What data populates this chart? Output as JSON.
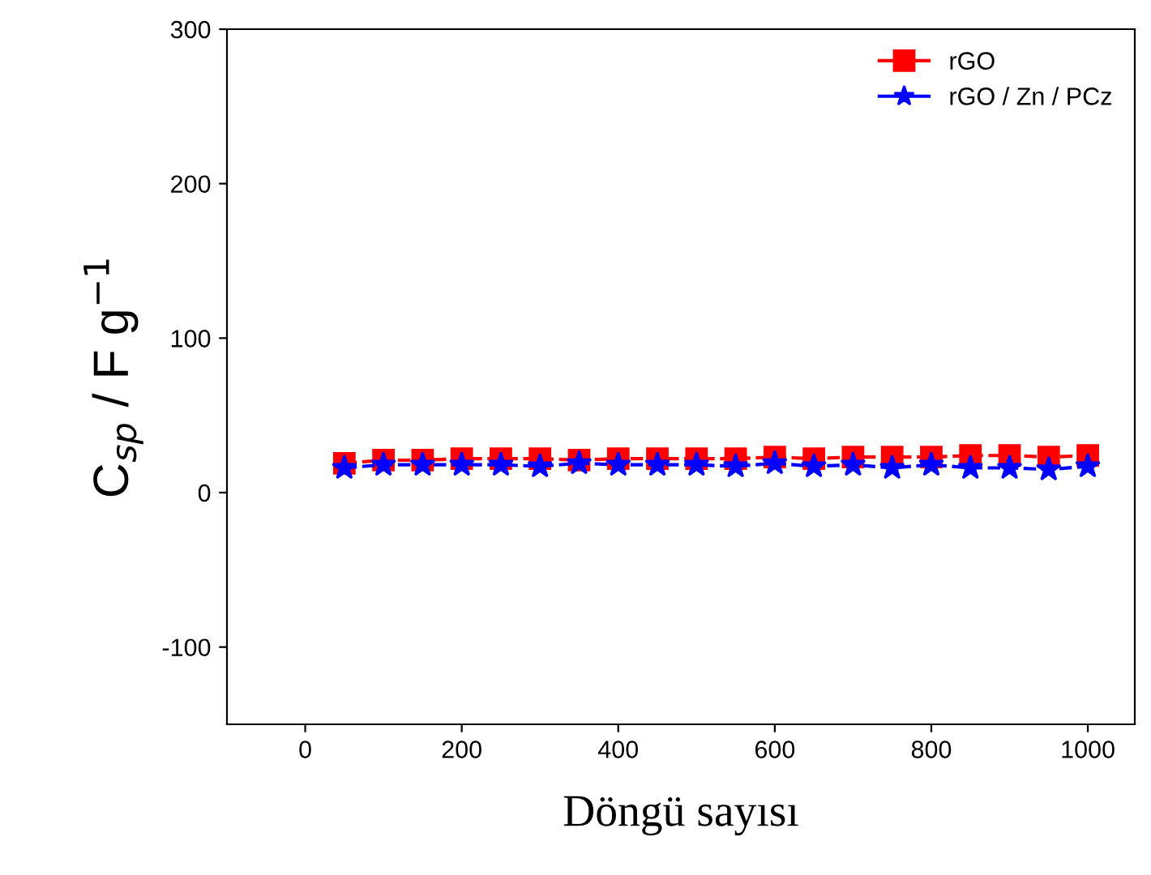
{
  "chart_data": {
    "type": "line",
    "xlabel": "Döngü sayısı",
    "ylabel": "C$_{sp}$ / F g$^{−1}$",
    "x": [
      50,
      100,
      150,
      200,
      250,
      300,
      350,
      400,
      450,
      500,
      550,
      600,
      650,
      700,
      750,
      800,
      850,
      900,
      950,
      1000
    ],
    "series": [
      {
        "name": "rGO",
        "color": "#ff0000",
        "marker": "square",
        "values": [
          19,
          21,
          21,
          22,
          22,
          22,
          21,
          22,
          22,
          22,
          22,
          23,
          22,
          23,
          23,
          23,
          24,
          24,
          23,
          24
        ]
      },
      {
        "name": "rGO / Zn / PCz",
        "color": "#0000ff",
        "marker": "star",
        "values": [
          16,
          18,
          18,
          18,
          18,
          17,
          19,
          18,
          18,
          18,
          17,
          19,
          17,
          18,
          16,
          18,
          16,
          16,
          15,
          17
        ]
      }
    ],
    "line_style": "dashed",
    "xlim": [
      -100,
      1060
    ],
    "ylim": [
      -150,
      300
    ],
    "xticks": [
      0,
      200,
      400,
      600,
      800,
      1000
    ],
    "yticks": [
      -100,
      0,
      100,
      200,
      300
    ],
    "legend": "top right",
    "grid": false
  }
}
